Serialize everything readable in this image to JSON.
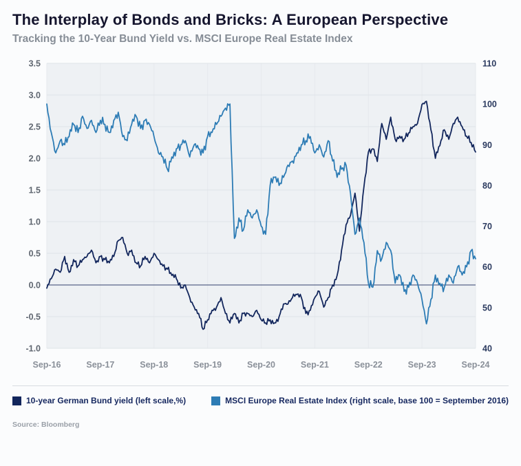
{
  "header": {
    "title": "The Interplay of Bonds and Bricks: A European Perspective",
    "subtitle": "Tracking the 10-Year Bund Yield vs. MSCI Europe Real Estate Index"
  },
  "legend": {
    "bund": {
      "label": "10-year German Bund yield (left scale,%)",
      "color": "#12265c"
    },
    "msci": {
      "label": "MSCI Europe Real Estate Index (right scale, base 100 = September 2016)",
      "color": "#2d7cb5"
    }
  },
  "source": "Source: Bloomberg",
  "chart_data": {
    "type": "line",
    "frequency": "monthly",
    "x_start": "Sep-16",
    "x_end": "Sep-24",
    "x_tick_labels": [
      "Sep-16",
      "Sep-17",
      "Sep-18",
      "Sep-19",
      "Sep-20",
      "Sep-21",
      "Sep-22",
      "Sep-23",
      "Sep-24"
    ],
    "tick_every": 12,
    "y_left": {
      "min": -1.0,
      "max": 3.5,
      "ticks": [
        3.5,
        3.0,
        2.5,
        2.0,
        1.5,
        1.0,
        0.5,
        0.0,
        -0.5,
        -1.0
      ]
    },
    "y_right": {
      "min": 40,
      "max": 110,
      "ticks": [
        110,
        100,
        90,
        80,
        70,
        60,
        50,
        40
      ]
    },
    "grid": true,
    "legend_position": "bottom",
    "series": [
      {
        "name": "10-year German Bund yield",
        "axis": "left",
        "color": "#12265c",
        "values": [
          -0.05,
          0.1,
          0.25,
          0.2,
          0.45,
          0.2,
          0.4,
          0.3,
          0.4,
          0.45,
          0.55,
          0.35,
          0.45,
          0.4,
          0.35,
          0.45,
          0.7,
          0.75,
          0.5,
          0.55,
          0.35,
          0.3,
          0.45,
          0.35,
          0.5,
          0.4,
          0.3,
          0.25,
          0.15,
          0.1,
          -0.05,
          0.0,
          -0.2,
          -0.35,
          -0.45,
          -0.7,
          -0.55,
          -0.4,
          -0.35,
          -0.2,
          -0.45,
          -0.6,
          -0.45,
          -0.6,
          -0.45,
          -0.45,
          -0.5,
          -0.4,
          -0.55,
          -0.6,
          -0.55,
          -0.6,
          -0.5,
          -0.3,
          -0.3,
          -0.2,
          -0.15,
          -0.2,
          -0.45,
          -0.4,
          -0.2,
          -0.1,
          -0.35,
          -0.2,
          0.0,
          0.15,
          0.55,
          0.95,
          1.1,
          1.45,
          0.85,
          1.55,
          2.1,
          2.15,
          1.95,
          2.55,
          2.3,
          2.65,
          2.3,
          2.35,
          2.3,
          2.4,
          2.5,
          2.55,
          2.85,
          2.9,
          2.45,
          2.0,
          2.2,
          2.45,
          2.3,
          2.55,
          2.65,
          2.5,
          2.35,
          2.25,
          2.1
        ]
      },
      {
        "name": "MSCI Europe Real Estate Index",
        "axis": "right",
        "color": "#2d7cb5",
        "values": [
          100,
          93,
          88,
          91,
          90,
          92,
          95,
          93,
          97,
          94,
          96,
          93,
          96,
          95,
          93,
          96,
          98,
          92,
          91,
          95,
          97,
          94,
          96,
          95,
          92,
          88,
          87,
          84,
          87,
          89,
          90,
          91,
          87,
          90,
          89,
          88,
          92,
          93,
          95,
          97,
          99,
          100,
          67,
          72,
          69,
          74,
          72,
          74,
          70,
          68,
          80,
          82,
          80,
          82,
          85,
          86,
          88,
          90,
          91,
          92,
          88,
          90,
          87,
          91,
          86,
          82,
          84,
          85,
          78,
          68,
          72,
          66,
          56,
          55,
          64,
          62,
          66,
          64,
          56,
          58,
          54,
          55,
          58,
          56,
          52,
          46,
          52,
          58,
          56,
          55,
          58,
          56,
          60,
          58,
          60,
          64,
          62
        ]
      }
    ]
  }
}
